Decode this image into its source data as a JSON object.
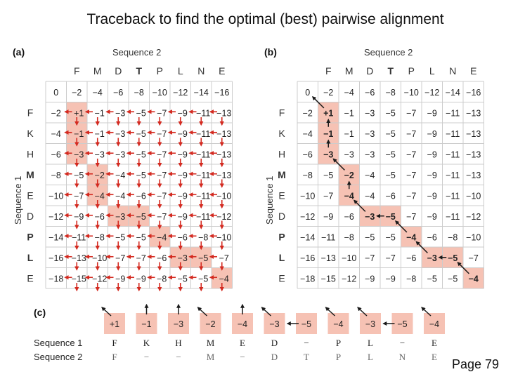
{
  "title": "Traceback to find the optimal (best) pairwise alignment",
  "page_label": "Page 79",
  "panel_a": {
    "label": "(a)",
    "seq2_title": "Sequence 2",
    "seq1_title": "Sequence 1"
  },
  "panel_b": {
    "label": "(b)",
    "seq2_title": "Sequence 2",
    "seq1_title": "Sequence 1"
  },
  "panel_c": {
    "label": "(c)",
    "seq1_label": "Sequence 1",
    "seq2_label": "Sequence 2"
  },
  "seq2_letters": [
    "F",
    "M",
    "D",
    "T",
    "P",
    "L",
    "N",
    "E"
  ],
  "seq1_letters": [
    "F",
    "K",
    "H",
    "M",
    "E",
    "D",
    "P",
    "L",
    "E"
  ],
  "bold_seq2": [
    false,
    false,
    false,
    true,
    false,
    false,
    false,
    false
  ],
  "bold_seq1": [
    false,
    false,
    false,
    true,
    false,
    false,
    true,
    true,
    false
  ],
  "matrix_a": [
    [
      "0",
      "−2",
      "−4",
      "−6",
      "−8",
      "−10",
      "−12",
      "−14",
      "−16"
    ],
    [
      "−2",
      "+1",
      "−1",
      "−3",
      "−5",
      "−7",
      "−9",
      "−11",
      "−13"
    ],
    [
      "−4",
      "−1",
      "−1",
      "−3",
      "−5",
      "−7",
      "−9",
      "−11",
      "−13"
    ],
    [
      "−6",
      "−3",
      "−3",
      "−3",
      "−5",
      "−7",
      "−9",
      "−11",
      "−13"
    ],
    [
      "−8",
      "−5",
      "−2",
      "−4",
      "−5",
      "−7",
      "−9",
      "−11",
      "−13"
    ],
    [
      "−10",
      "−7",
      "−4",
      "−4",
      "−6",
      "−7",
      "−9",
      "−11",
      "−10"
    ],
    [
      "−12",
      "−9",
      "−6",
      "−3",
      "−5",
      "−7",
      "−9",
      "−11",
      "−12"
    ],
    [
      "−14",
      "−11",
      "−8",
      "−5",
      "−5",
      "−4",
      "−6",
      "−8",
      "−10"
    ],
    [
      "−16",
      "−13",
      "−10",
      "−7",
      "−7",
      "−6",
      "−3",
      "−5",
      "−7"
    ],
    [
      "−18",
      "−15",
      "−12",
      "−9",
      "−9",
      "−8",
      "−5",
      "−5",
      "−4"
    ]
  ],
  "matrix_b": [
    [
      "0",
      "−2",
      "−4",
      "−6",
      "−8",
      "−10",
      "−12",
      "−14",
      "−16"
    ],
    [
      "−2",
      "+1",
      "−1",
      "−3",
      "−5",
      "−7",
      "−9",
      "−11",
      "−13"
    ],
    [
      "−4",
      "−1",
      "−1",
      "−3",
      "−5",
      "−7",
      "−9",
      "−11",
      "−13"
    ],
    [
      "−6",
      "−3",
      "−3",
      "−3",
      "−5",
      "−7",
      "−9",
      "−11",
      "−13"
    ],
    [
      "−8",
      "−5",
      "−2",
      "−4",
      "−5",
      "−7",
      "−9",
      "−11",
      "−13"
    ],
    [
      "−10",
      "−7",
      "−4",
      "−4",
      "−6",
      "−7",
      "−9",
      "−11",
      "−10"
    ],
    [
      "−12",
      "−9",
      "−6",
      "−3",
      "−5",
      "−7",
      "−9",
      "−11",
      "−12"
    ],
    [
      "−14",
      "−11",
      "−8",
      "−5",
      "−5",
      "−4",
      "−6",
      "−8",
      "−10"
    ],
    [
      "−16",
      "−13",
      "−10",
      "−7",
      "−7",
      "−6",
      "−3",
      "−5",
      "−7"
    ],
    [
      "−18",
      "−15",
      "−12",
      "−9",
      "−9",
      "−8",
      "−5",
      "−5",
      "−4"
    ]
  ],
  "highlight_a": [
    [
      1,
      1
    ],
    [
      2,
      1
    ],
    [
      3,
      1
    ],
    [
      4,
      2
    ],
    [
      5,
      2
    ],
    [
      6,
      3
    ],
    [
      6,
      4
    ],
    [
      7,
      5
    ],
    [
      8,
      6
    ],
    [
      8,
      7
    ],
    [
      9,
      8
    ]
  ],
  "highlight_b": [
    [
      1,
      1
    ],
    [
      2,
      1
    ],
    [
      3,
      1
    ],
    [
      4,
      2
    ],
    [
      5,
      2
    ],
    [
      6,
      3
    ],
    [
      6,
      4
    ],
    [
      7,
      5
    ],
    [
      8,
      6
    ],
    [
      8,
      7
    ],
    [
      9,
      8
    ]
  ],
  "alignment": {
    "scores": [
      "+1",
      "−1",
      "−3",
      "−2",
      "−4",
      "−3",
      "−5",
      "−4",
      "−3",
      "−5",
      "−4"
    ],
    "arrows": [
      "diag",
      "up",
      "up",
      "diag",
      "up",
      "diag",
      "left",
      "diag",
      "diag",
      "left",
      "diag"
    ],
    "seq1": [
      "F",
      "K",
      "H",
      "M",
      "E",
      "D",
      "−",
      "P",
      "L",
      "−",
      "E"
    ],
    "seq2": [
      "F",
      "−",
      "−",
      "M",
      "−",
      "D",
      "T",
      "P",
      "L",
      "N",
      "E"
    ]
  },
  "colors": {
    "highlight": "#f6c2b4",
    "arrow_red": "#d42a20",
    "arrow_black": "#1a1a1a",
    "grid_line": "#cccccc"
  }
}
